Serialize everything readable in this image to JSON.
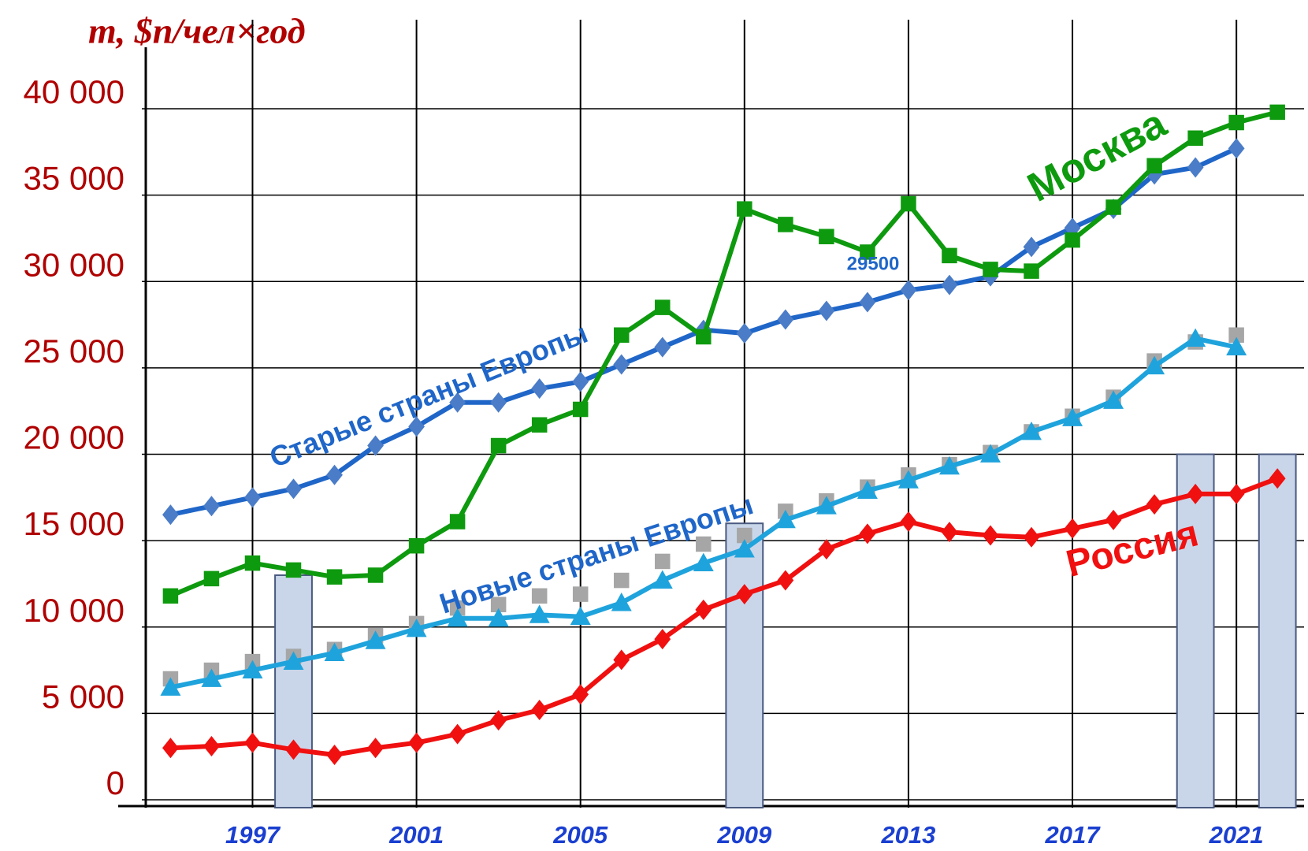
{
  "chart_data": {
    "type": "line",
    "y_label": "m, $п/чел×год",
    "annotation": "29500",
    "x": [
      1995,
      1996,
      1997,
      1998,
      1999,
      2000,
      2001,
      2002,
      2003,
      2004,
      2005,
      2006,
      2007,
      2008,
      2009,
      2010,
      2011,
      2012,
      2013,
      2014,
      2015,
      2016,
      2017,
      2018,
      2019,
      2020,
      2021,
      2022
    ],
    "xlim": [
      1994.3,
      2022.65
    ],
    "xticks": [
      1997,
      2001,
      2005,
      2009,
      2013,
      2017,
      2021
    ],
    "ylim": [
      0,
      40000
    ],
    "yticks": [
      0,
      {
        "value": 5000,
        "label": "5 000"
      },
      {
        "value": 10000,
        "label": "10 000"
      },
      {
        "value": 15000,
        "label": "15 000"
      },
      {
        "value": 20000,
        "label": "20 000"
      },
      {
        "value": 25000,
        "label": "25 000"
      },
      {
        "value": 30000,
        "label": "30 000"
      },
      {
        "value": 35000,
        "label": "35 000"
      },
      {
        "value": 40000,
        "label": "40 000"
      }
    ],
    "grid": true,
    "crisis_bars": {
      "x": [
        1998,
        2009,
        2020,
        2022
      ],
      "values": [
        13000,
        16000,
        20000,
        20000
      ],
      "color": "#c9d6ea"
    },
    "series": [
      {
        "name": "Старые страны Европы",
        "color": "#1f66c8",
        "marker_color": "#4a7cc7",
        "marker": "diamond",
        "line": true,
        "values": [
          16500,
          17000,
          17500,
          18000,
          18800,
          20500,
          21600,
          23000,
          23000,
          23800,
          24200,
          25200,
          26200,
          27200,
          27000,
          27800,
          28300,
          28800,
          29500,
          29800,
          30300,
          32000,
          33100,
          34200,
          36200,
          36600,
          37700,
          null
        ]
      },
      {
        "name": "Москва",
        "color": "#0e9a0e",
        "marker_color": "#0e9a0e",
        "marker": "square",
        "line": true,
        "values": [
          11800,
          12800,
          13700,
          13300,
          12900,
          13000,
          14700,
          16100,
          20500,
          21700,
          22600,
          26900,
          28500,
          26800,
          34200,
          33300,
          32600,
          31700,
          34500,
          31500,
          30700,
          30600,
          32400,
          34300,
          36700,
          38300,
          39200,
          39800
        ]
      },
      {
        "color": "#a6a6a6",
        "marker_color": "#a6a6a6",
        "marker": "square",
        "line": false,
        "values": [
          7000,
          7500,
          8000,
          8300,
          8700,
          9500,
          10200,
          11100,
          11300,
          11800,
          11900,
          12700,
          13800,
          14800,
          15300,
          16700,
          17300,
          18100,
          18800,
          19400,
          20100,
          21300,
          22200,
          23300,
          25400,
          26500,
          26900,
          null
        ]
      },
      {
        "name": "Новые страны Европы",
        "color": "#1fa3dc",
        "marker_color": "#1fa3dc",
        "marker": "triangle",
        "line": true,
        "values": [
          6500,
          7000,
          7500,
          8000,
          8500,
          9200,
          9900,
          10500,
          10500,
          10700,
          10600,
          11400,
          12700,
          13700,
          14500,
          16200,
          17000,
          17900,
          18500,
          19300,
          20000,
          21300,
          22100,
          23100,
          25100,
          26700,
          26200,
          null
        ]
      },
      {
        "name": "Россия",
        "color": "#f01010",
        "marker_color": "#f01010",
        "marker": "diamond",
        "line": true,
        "values": [
          3000,
          3100,
          3300,
          2900,
          2600,
          3000,
          3300,
          3800,
          4600,
          5200,
          6100,
          8100,
          9300,
          11000,
          11900,
          12700,
          14500,
          15400,
          16100,
          15500,
          15300,
          15200,
          15700,
          16200,
          17100,
          17700,
          17700,
          18600
        ]
      }
    ]
  }
}
